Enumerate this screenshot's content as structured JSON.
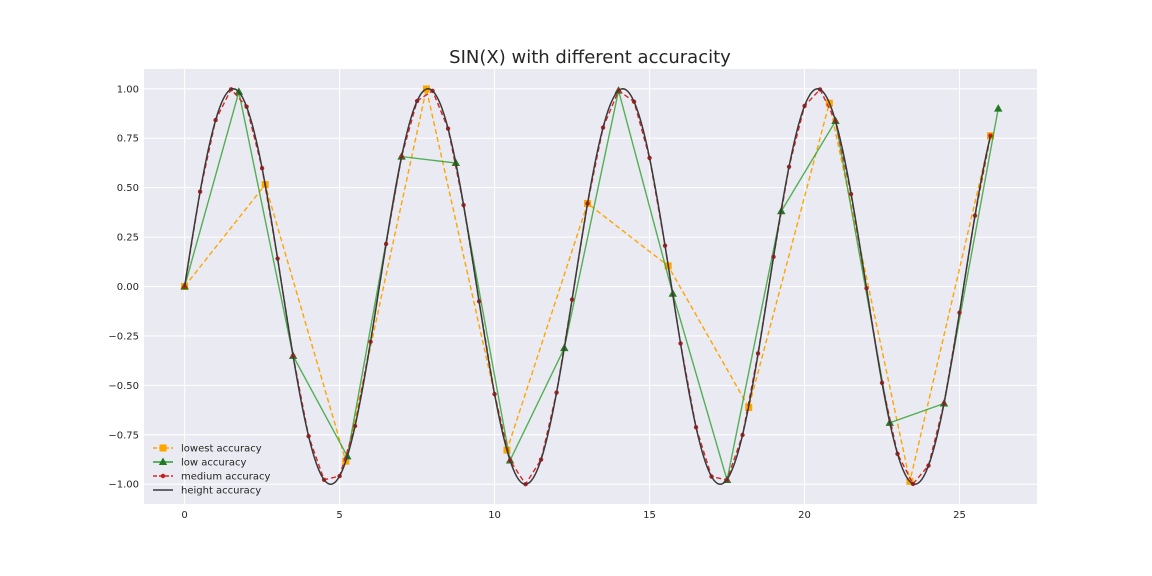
{
  "chart_data": {
    "type": "line",
    "title": "SIN(X) with different accuracity",
    "xlabel": "",
    "ylabel": "",
    "xlim": [
      -1.31,
      27.5
    ],
    "ylim": [
      -1.1,
      1.1
    ],
    "x_ticks": [
      0,
      5,
      10,
      15,
      20,
      25
    ],
    "x_tick_labels": [
      "0",
      "5",
      "10",
      "15",
      "20",
      "25"
    ],
    "y_ticks": [
      -1.0,
      -0.75,
      -0.5,
      -0.25,
      0.0,
      0.25,
      0.5,
      0.75,
      1.0
    ],
    "y_tick_labels": [
      "−1.00",
      "−0.75",
      "−0.50",
      "−0.25",
      "0.00",
      "0.25",
      "0.50",
      "0.75",
      "1.00"
    ],
    "grid": true,
    "legend_position": "lower-left",
    "background": "#eaeaf2",
    "series": [
      {
        "name": "lowest accuracy",
        "color": "#ffa500",
        "linestyle": "dashed",
        "marker": "square",
        "x": [
          0,
          2.6,
          5.2,
          7.8,
          10.4,
          13.0,
          15.6,
          18.2,
          20.8,
          23.4,
          26.0
        ],
        "y": [
          0.0,
          0.5155,
          -0.8835,
          0.9989,
          -0.8278,
          0.4202,
          0.1042,
          -0.6119,
          0.9272,
          -0.9853,
          0.7625
        ]
      },
      {
        "name": "low accuracy",
        "color": "#2ca02c",
        "linestyle": "solid",
        "marker": "triangle",
        "x": [
          0,
          1.75,
          3.5,
          5.25,
          7.0,
          8.75,
          10.5,
          12.25,
          14.0,
          15.75,
          17.5,
          19.25,
          21.0,
          22.75,
          24.5,
          26.25
        ],
        "y": [
          0.0,
          0.984,
          -0.3508,
          -0.8589,
          0.657,
          0.6243,
          -0.8797,
          -0.3117,
          0.9906,
          -0.0366,
          -0.9784,
          0.3806,
          0.8367,
          -0.6894,
          -0.5917,
          0.8998
        ]
      },
      {
        "name": "medium accuracy",
        "color": "#d62728",
        "linestyle": "dashed",
        "marker": "dot",
        "x": [
          0.0,
          0.5,
          1.0,
          1.5,
          2.0,
          2.5,
          3.0,
          3.5,
          4.0,
          4.5,
          5.0,
          5.5,
          6.0,
          6.5,
          7.0,
          7.5,
          8.0,
          8.5,
          9.0,
          9.5,
          10.0,
          10.5,
          11.0,
          11.5,
          12.0,
          12.5,
          13.0,
          13.5,
          14.0,
          14.5,
          15.0,
          15.5,
          16.0,
          16.5,
          17.0,
          17.5,
          18.0,
          18.5,
          19.0,
          19.5,
          20.0,
          20.5,
          21.0,
          21.5,
          22.0,
          22.5,
          23.0,
          23.5,
          24.0,
          24.5,
          25.0,
          25.5,
          26.0
        ],
        "y": [
          0.0,
          0.4794,
          0.8415,
          0.9975,
          0.9093,
          0.5985,
          0.1411,
          -0.3508,
          -0.7568,
          -0.9775,
          -0.9589,
          -0.7055,
          -0.2794,
          0.2151,
          0.657,
          0.938,
          0.9894,
          0.7985,
          0.4121,
          -0.0752,
          -0.544,
          -0.8797,
          -1.0,
          -0.8755,
          -0.5366,
          -0.0663,
          0.4202,
          0.8038,
          0.9906,
          0.9349,
          0.6503,
          0.2065,
          -0.2879,
          -0.7124,
          -0.9614,
          -0.9784,
          -0.751,
          -0.3383,
          0.1499,
          0.6055,
          0.9129,
          0.9968,
          0.8367,
          0.4677,
          -0.0089,
          -0.4872,
          -0.8462,
          -0.9985,
          -0.9056,
          -0.5917,
          -0.1324,
          0.3587,
          0.7625
        ]
      },
      {
        "name": "height accuracy",
        "color": "#3a3a3a",
        "linestyle": "solid",
        "marker": "none",
        "function": "sin",
        "x_range": [
          0,
          26.0
        ]
      }
    ]
  }
}
